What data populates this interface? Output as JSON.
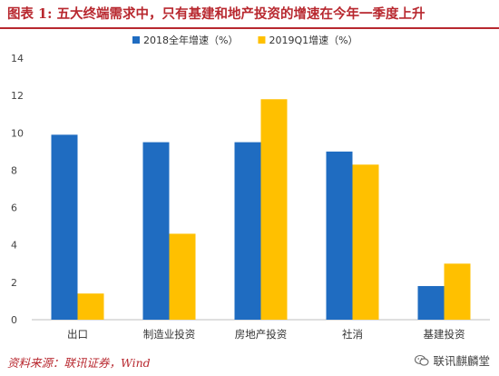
{
  "header": {
    "label": "图表 1:",
    "title": "五大终端需求中，只有基建和地产投资的增速在今年一季度上升"
  },
  "footer": {
    "source": "资料来源：联讯证券，Wind",
    "watermark": "联讯麒麟堂",
    "watermark_icon": "wechat-icon"
  },
  "colors": {
    "accent": "#b8282f",
    "series_2018": "#1f6cc1",
    "series_2019q1": "#ffc000"
  },
  "chart_data": {
    "type": "bar",
    "categories": [
      "出口",
      "制造业投资",
      "房地产投资",
      "社消",
      "基建投资"
    ],
    "series": [
      {
        "name": "2018全年增速（%）",
        "values": [
          9.9,
          9.5,
          9.5,
          9.0,
          1.8
        ],
        "color": "#1f6cc1"
      },
      {
        "name": "2019Q1增速（%）",
        "values": [
          1.4,
          4.6,
          11.8,
          8.3,
          3.0
        ],
        "color": "#ffc000"
      }
    ],
    "ylim": [
      0,
      14
    ],
    "yticks": [
      0,
      2,
      4,
      6,
      8,
      10,
      12,
      14
    ],
    "grid": false,
    "legend": "top"
  }
}
